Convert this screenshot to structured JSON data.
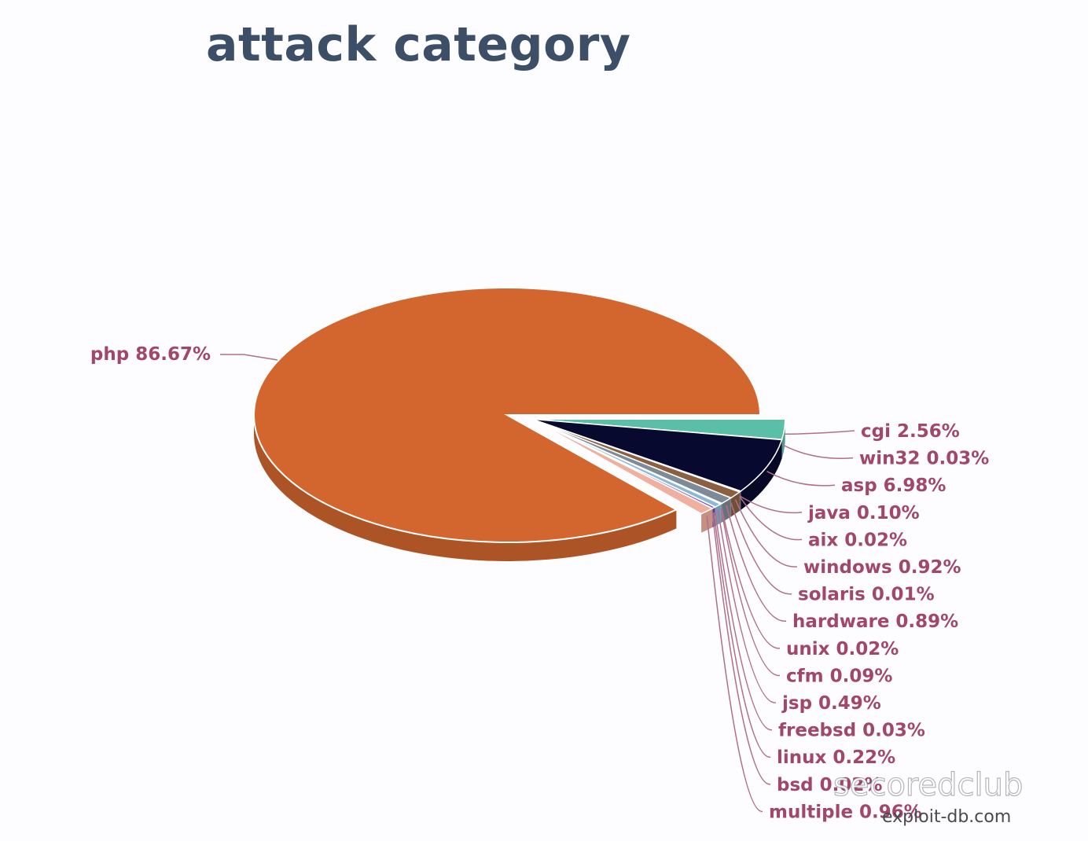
{
  "chart_data": {
    "type": "pie",
    "title": "attack category",
    "slices": [
      {
        "label": "php 86.67%",
        "name": "php",
        "value": 86.67,
        "color": "#d2662e"
      },
      {
        "label": "cgi 2.56%",
        "name": "cgi",
        "value": 2.56,
        "color": "#5bbfa8"
      },
      {
        "label": "win32 0.03%",
        "name": "win32",
        "value": 0.03,
        "color": "#2d2d6e"
      },
      {
        "label": "asp 6.98%",
        "name": "asp",
        "value": 6.98,
        "color": "#070a2e"
      },
      {
        "label": "java 0.10%",
        "name": "java",
        "value": 0.1,
        "color": "#6b6b8a"
      },
      {
        "label": "aix 0.02%",
        "name": "aix",
        "value": 0.02,
        "color": "#8a6a50"
      },
      {
        "label": "windows 0.92%",
        "name": "windows",
        "value": 0.92,
        "color": "#8a6040"
      },
      {
        "label": "solaris 0.01%",
        "name": "solaris",
        "value": 0.01,
        "color": "#b08850"
      },
      {
        "label": "hardware 0.89%",
        "name": "hardware",
        "value": 0.89,
        "color": "#7d8a98"
      },
      {
        "label": "unix 0.02%",
        "name": "unix",
        "value": 0.02,
        "color": "#9aa0aa"
      },
      {
        "label": "cfm 0.09%",
        "name": "cfm",
        "value": 0.09,
        "color": "#6aa8c8"
      },
      {
        "label": "jsp 0.49%",
        "name": "jsp",
        "value": 0.49,
        "color": "#8ab8d8"
      },
      {
        "label": "freebsd 0.03%",
        "name": "freebsd",
        "value": 0.03,
        "color": "#c0c8d8"
      },
      {
        "label": "linux 0.22%",
        "name": "linux",
        "value": 0.22,
        "color": "#7a3db8"
      },
      {
        "label": "bsd 0.02%",
        "name": "bsd",
        "value": 0.02,
        "color": "#c070c0"
      },
      {
        "label": "multiple 0.96%",
        "name": "multiple",
        "value": 0.96,
        "color": "#f0b0a0"
      }
    ],
    "legend": "none",
    "labels_placement": "outside-with-leaders"
  },
  "watermark": {
    "brand": "secoredclub",
    "site": "exploit-db.com"
  },
  "colors": {
    "title": "#3d4f66",
    "label": "#a0476b",
    "leader": "#b0708a",
    "background": "#fdfcfe"
  }
}
